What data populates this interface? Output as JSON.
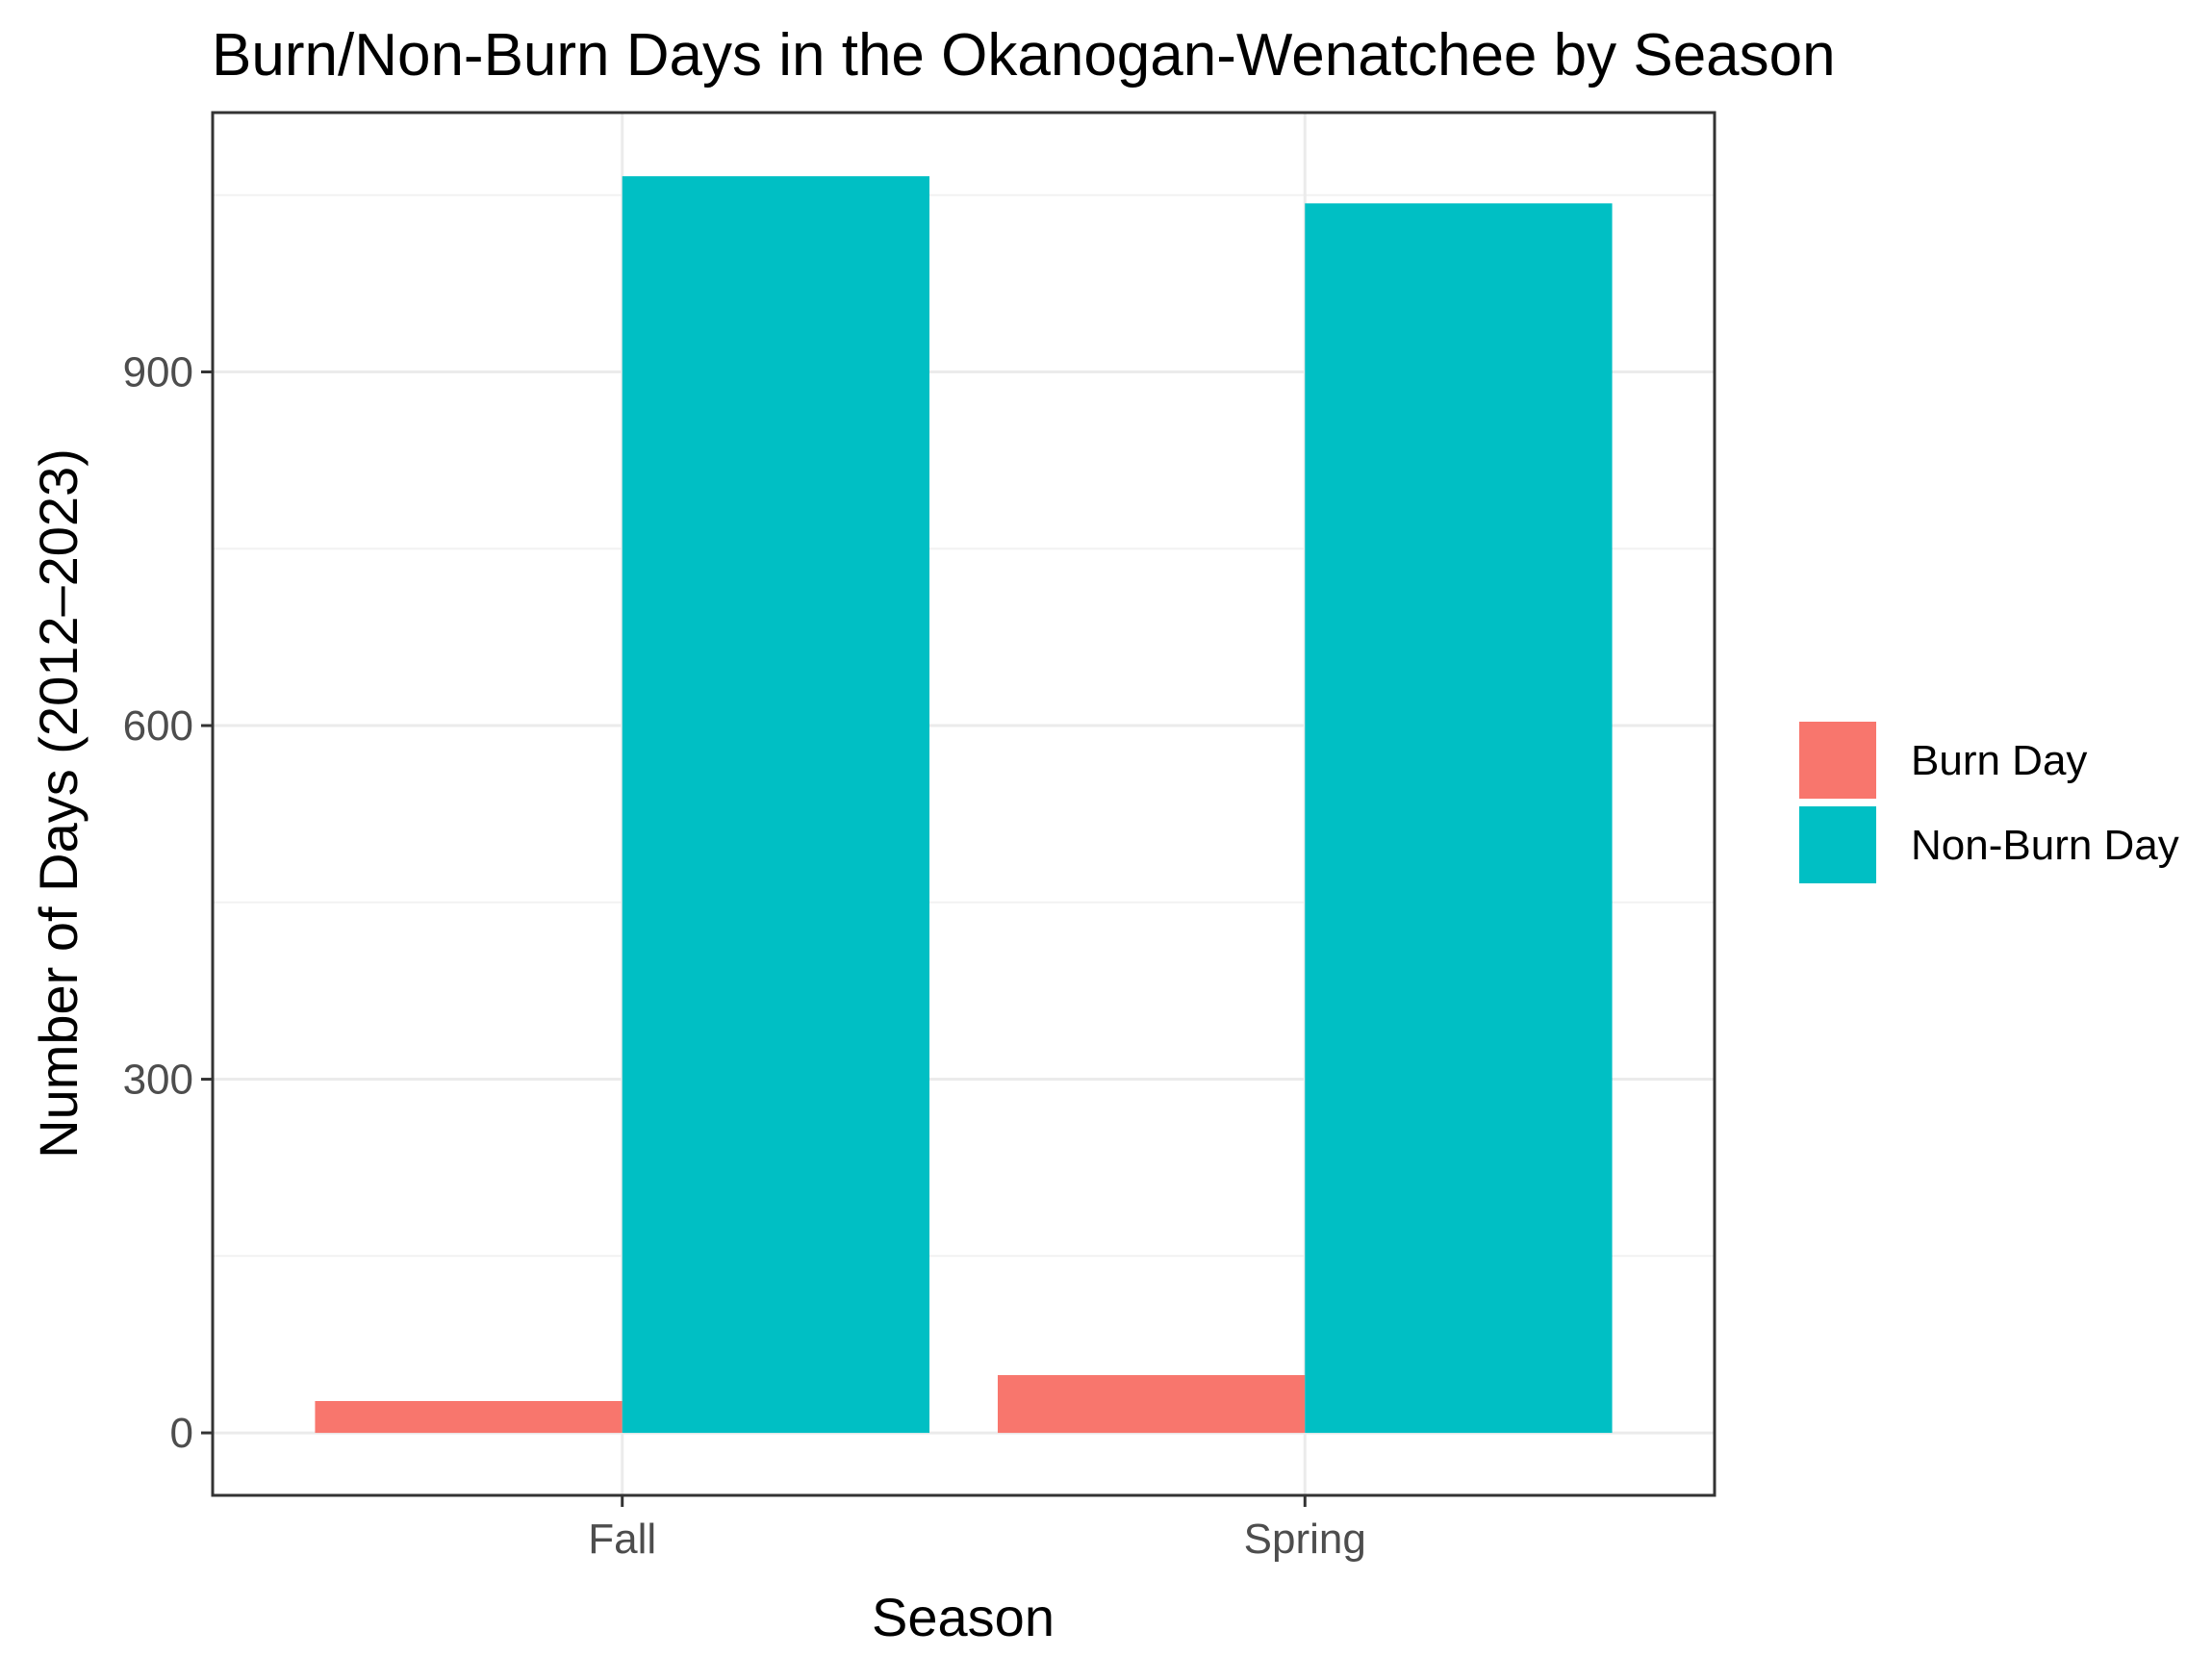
{
  "chart_data": {
    "type": "bar",
    "title": "Burn/Non-Burn Days in the Okanogan-Wenatchee by Season",
    "xlabel": "Season",
    "ylabel": "Number of Days (2012–2023)",
    "categories": [
      "Fall",
      "Spring"
    ],
    "series": [
      {
        "name": "Burn Day",
        "values": [
          27,
          49
        ],
        "color": "#F8766D"
      },
      {
        "name": "Non-Burn Day",
        "values": [
          1066,
          1043
        ],
        "color": "#00BFC4"
      }
    ],
    "yticks": [
      0,
      300,
      600,
      900
    ],
    "ylim": [
      -53,
      1120
    ],
    "grid": true,
    "legend_position": "right"
  }
}
